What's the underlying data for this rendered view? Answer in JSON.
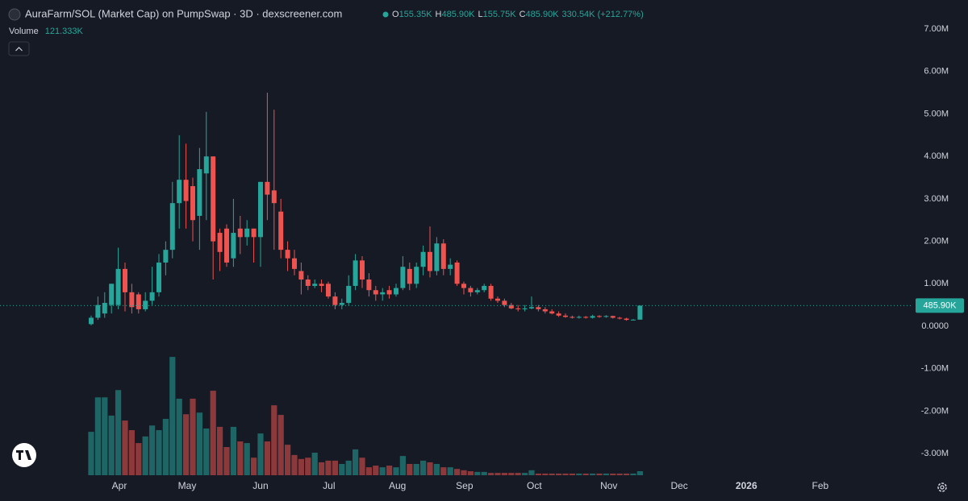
{
  "chart_data": {
    "type": "candlestick",
    "title": "AuraFarm/SOL (Market Cap) on PumpSwap · 3D · dexscreener.com",
    "ohlc_legend": [
      {
        "key": "O",
        "value": "155.35K"
      },
      {
        "key": "H",
        "value": "485.90K"
      },
      {
        "key": "L",
        "value": "155.75K"
      },
      {
        "key": "C",
        "value": "485.90K"
      }
    ],
    "change": "330.54K (+212.77%)",
    "volume_label": "Volume",
    "volume_value": "121.333K",
    "up_color": "#26a69a",
    "down_color": "#ef5350",
    "open": [
      50000,
      200000,
      300000,
      500000,
      500000,
      1350000,
      800000,
      750000,
      400000,
      600000,
      800000,
      1500000,
      1800000,
      2900000,
      3450000,
      3300000,
      2600000,
      3600000,
      4000000,
      2200000,
      2300000,
      1600000,
      2300000,
      2100000,
      2300000,
      2100000,
      3400000,
      3200000,
      2700000,
      1800000,
      1600000,
      1300000,
      1100000,
      950000,
      1000000,
      1000000,
      700000,
      500000,
      550000,
      950000,
      1550000,
      1100000,
      850000,
      750000,
      850000,
      750000,
      900000,
      1350000,
      1000000,
      1400000,
      1750000,
      1300000,
      1950000,
      1350000,
      1500000,
      1000000,
      900000,
      800000,
      850000,
      950000,
      650000,
      600000,
      500000,
      420000,
      400000,
      420000,
      450000,
      400000,
      350000,
      300000,
      250000,
      220000,
      200000,
      220000,
      200000,
      240000,
      220000,
      240000,
      200000,
      180000,
      150000,
      155350
    ],
    "high": [
      250000,
      700000,
      800000,
      1000000,
      1850000,
      1500000,
      1000000,
      800000,
      800000,
      1400000,
      1700000,
      2000000,
      3400000,
      4500000,
      4300000,
      3500000,
      4200000,
      5050000,
      4000000,
      2300000,
      2400000,
      3000000,
      2600000,
      2500000,
      2300000,
      3400000,
      5500000,
      5100000,
      3000000,
      2000000,
      1800000,
      1500000,
      1200000,
      1100000,
      1100000,
      1050000,
      800000,
      650000,
      1200000,
      1700000,
      1650000,
      1250000,
      950000,
      900000,
      950000,
      1000000,
      1650000,
      1500000,
      1500000,
      1900000,
      2350000,
      2100000,
      2050000,
      1600000,
      1550000,
      1050000,
      950000,
      900000,
      1000000,
      1000000,
      700000,
      650000,
      550000,
      500000,
      500000,
      700000,
      500000,
      450000,
      400000,
      350000,
      300000,
      250000,
      250000,
      240000,
      270000,
      260000,
      260000,
      250000,
      220000,
      200000,
      170000,
      485900
    ],
    "low": [
      20000,
      150000,
      200000,
      300000,
      400000,
      350000,
      300000,
      300000,
      350000,
      500000,
      700000,
      1200000,
      1600000,
      2300000,
      2300000,
      2000000,
      1800000,
      2500000,
      1100000,
      1300000,
      1400000,
      1400000,
      1700000,
      1900000,
      1500000,
      1400000,
      2500000,
      1800000,
      1600000,
      1300000,
      1200000,
      750000,
      850000,
      900000,
      800000,
      650000,
      400000,
      400000,
      500000,
      850000,
      900000,
      700000,
      600000,
      600000,
      650000,
      700000,
      850000,
      850000,
      900000,
      1200000,
      1150000,
      1200000,
      1200000,
      1200000,
      950000,
      750000,
      700000,
      750000,
      800000,
      600000,
      550000,
      450000,
      400000,
      350000,
      350000,
      400000,
      350000,
      300000,
      280000,
      220000,
      200000,
      180000,
      180000,
      180000,
      180000,
      200000,
      200000,
      180000,
      160000,
      130000,
      140000,
      155750
    ],
    "close": [
      200000,
      500000,
      550000,
      1000000,
      1350000,
      800000,
      450000,
      400000,
      600000,
      800000,
      1500000,
      1800000,
      2900000,
      3450000,
      2950000,
      2500000,
      3700000,
      4000000,
      2000000,
      1750000,
      1500000,
      2200000,
      2100000,
      2300000,
      2100000,
      3400000,
      3100000,
      2900000,
      1800000,
      1600000,
      1350000,
      1100000,
      950000,
      1000000,
      950000,
      700000,
      500000,
      550000,
      950000,
      1550000,
      1100000,
      850000,
      750000,
      800000,
      750000,
      900000,
      1400000,
      1000000,
      1400000,
      1750000,
      1300000,
      1950000,
      1350000,
      1450000,
      1000000,
      900000,
      800000,
      850000,
      950000,
      650000,
      600000,
      500000,
      420000,
      400000,
      420000,
      450000,
      400000,
      350000,
      300000,
      250000,
      220000,
      200000,
      220000,
      200000,
      240000,
      220000,
      240000,
      200000,
      180000,
      150000,
      155000,
      485900
    ],
    "volume": [
      1310000,
      2350000,
      2350000,
      1800000,
      2570000,
      1650000,
      1360000,
      970000,
      1170000,
      1500000,
      1360000,
      1700000,
      3570000,
      2310000,
      1840000,
      2310000,
      1890000,
      1410000,
      2550000,
      1460000,
      850000,
      1460000,
      1020000,
      970000,
      530000,
      1260000,
      1020000,
      2110000,
      1820000,
      920000,
      610000,
      490000,
      530000,
      680000,
      390000,
      440000,
      440000,
      340000,
      440000,
      780000,
      530000,
      240000,
      290000,
      240000,
      290000,
      240000,
      580000,
      340000,
      340000,
      440000,
      390000,
      340000,
      240000,
      240000,
      190000,
      150000,
      120000,
      100000,
      100000,
      70000,
      70000,
      70000,
      70000,
      70000,
      70000,
      150000,
      50000,
      50000,
      50000,
      50000,
      50000,
      50000,
      50000,
      50000,
      50000,
      50000,
      50000,
      50000,
      50000,
      50000,
      50000,
      121333
    ],
    "volume_ylim": [
      0,
      7000000
    ],
    "ylim": [
      -3510000,
      7685000
    ],
    "yticks": [
      {
        "value": 7000000,
        "label": "7.00M"
      },
      {
        "value": 6000000,
        "label": "6.00M"
      },
      {
        "value": 5000000,
        "label": "5.00M"
      },
      {
        "value": 4000000,
        "label": "4.00M"
      },
      {
        "value": 3000000,
        "label": "3.00M"
      },
      {
        "value": 2000000,
        "label": "2.00M"
      },
      {
        "value": 1000000,
        "label": "1.00M"
      },
      {
        "value": 0,
        "label": "0.0000"
      },
      {
        "value": -1000000,
        "label": "-1.00M"
      },
      {
        "value": -2000000,
        "label": "-2.00M"
      },
      {
        "value": -3000000,
        "label": "-3.00M"
      }
    ],
    "xlim": [
      -13.45,
      121.07
    ],
    "xticks": [
      {
        "value": 4.17,
        "label": "Apr"
      },
      {
        "value": 14.17,
        "label": "May"
      },
      {
        "value": 25,
        "label": "Jun"
      },
      {
        "value": 35.1,
        "label": "Jul"
      },
      {
        "value": 45.2,
        "label": "Aug"
      },
      {
        "value": 55.1,
        "label": "Sep"
      },
      {
        "value": 65.4,
        "label": "Oct"
      },
      {
        "value": 76.4,
        "label": "Nov"
      },
      {
        "value": 86.8,
        "label": "Dec"
      },
      {
        "value": 96.7,
        "label": "2026"
      },
      {
        "value": 107.6,
        "label": "Feb"
      }
    ],
    "last_price": {
      "value": 485900,
      "label": "485.90K"
    },
    "grid": false
  }
}
